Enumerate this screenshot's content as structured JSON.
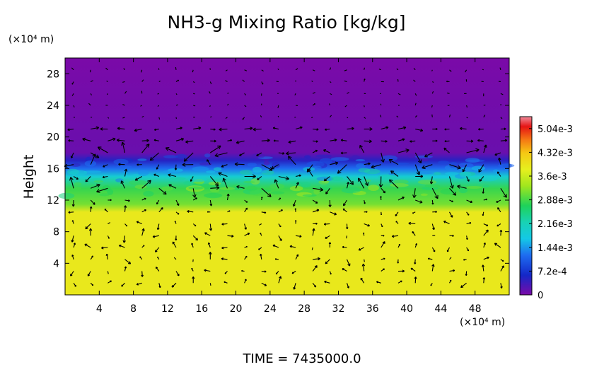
{
  "chart_data": {
    "type": "heatmap",
    "title": "NH3-g Mixing Ratio [kg/kg]",
    "ylabel": "Height",
    "xunit": "(×10⁴ m)",
    "yunit": "(×10⁴ m)",
    "xlim": [
      0,
      52
    ],
    "ylim": [
      0,
      30
    ],
    "xticks": [
      {
        "value": 4,
        "label": "4"
      },
      {
        "value": 8,
        "label": "8"
      },
      {
        "value": 12,
        "label": "12"
      },
      {
        "value": 16,
        "label": "16"
      },
      {
        "value": 20,
        "label": "20"
      },
      {
        "value": 24,
        "label": "24"
      },
      {
        "value": 28,
        "label": "28"
      },
      {
        "value": 32,
        "label": "32"
      },
      {
        "value": 36,
        "label": "36"
      },
      {
        "value": 40,
        "label": "40"
      },
      {
        "value": 44,
        "label": "44"
      },
      {
        "value": 48,
        "label": "48"
      }
    ],
    "yticks": [
      {
        "value": 4,
        "label": "4"
      },
      {
        "value": 8,
        "label": "8"
      },
      {
        "value": 12,
        "label": "12"
      },
      {
        "value": 16,
        "label": "16"
      },
      {
        "value": 20,
        "label": "20"
      },
      {
        "value": 24,
        "label": "24"
      },
      {
        "value": 28,
        "label": "28"
      }
    ],
    "colorbar": {
      "min": 0,
      "max": 0.0054,
      "ticks": [
        {
          "value": 0,
          "label": "0"
        },
        {
          "value": 0.00072,
          "label": "7.2e-4"
        },
        {
          "value": 0.00144,
          "label": "1.44e-3"
        },
        {
          "value": 0.00216,
          "label": "2.16e-3"
        },
        {
          "value": 0.00288,
          "label": "2.88e-3"
        },
        {
          "value": 0.0036,
          "label": "3.6e-3"
        },
        {
          "value": 0.00432,
          "label": "4.32e-3"
        },
        {
          "value": 0.00504,
          "label": "5.04e-3"
        }
      ],
      "color_stops": [
        {
          "value": 0,
          "color": "#7a0aa8"
        },
        {
          "value": 0.0006,
          "color": "#1428c8"
        },
        {
          "value": 0.0012,
          "color": "#1e6cf0"
        },
        {
          "value": 0.0017,
          "color": "#14c8e6"
        },
        {
          "value": 0.0022,
          "color": "#18d2b4"
        },
        {
          "value": 0.0027,
          "color": "#1ed25a"
        },
        {
          "value": 0.0033,
          "color": "#a0e61e"
        },
        {
          "value": 0.0038,
          "color": "#e6f01e"
        },
        {
          "value": 0.0043,
          "color": "#f5c814"
        },
        {
          "value": 0.0047,
          "color": "#f57814"
        },
        {
          "value": 0.0051,
          "color": "#e61414"
        },
        {
          "value": 0.0054,
          "color": "#f08c9b"
        }
      ]
    },
    "field_profile": [
      {
        "height": 0,
        "value": 0.0039
      },
      {
        "height": 10.5,
        "value": 0.0039
      },
      {
        "height": 11.5,
        "value": 0.0031
      },
      {
        "height": 13.5,
        "value": 0.0028
      },
      {
        "height": 15,
        "value": 0.0019
      },
      {
        "height": 16,
        "value": 0.0012
      },
      {
        "height": 17,
        "value": 0.0005
      },
      {
        "height": 18,
        "value": 0.0001
      },
      {
        "height": 30,
        "value": 0
      }
    ],
    "annotation": "TIME  =  7435000.0"
  }
}
